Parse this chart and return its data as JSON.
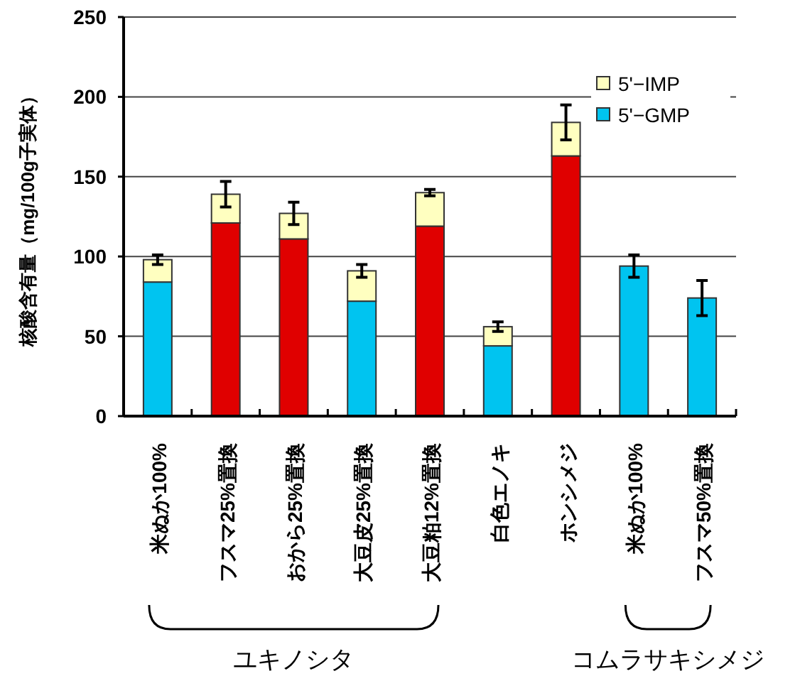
{
  "chart_data": {
    "type": "bar",
    "stacked": true,
    "ylabel": "核酸含有量（mg/100g子実体）",
    "categories": [
      "米ぬか100%",
      "フスマ25%置換",
      "おから25%置換",
      "大豆皮25%置換",
      "大豆粕12%置換",
      "白色エノキ",
      "ホンシメジ",
      "米ぬか100%",
      "フスマ50%置換"
    ],
    "series": [
      {
        "name": "5'−GMP",
        "color": "#00c4f0",
        "colors": [
          "#00c4f0",
          "#e00000",
          "#e00000",
          "#00c4f0",
          "#e00000",
          "#00c4f0",
          "#e00000",
          "#00c4f0",
          "#00c4f0"
        ],
        "values": [
          84,
          121,
          111,
          72,
          119,
          44,
          163,
          94,
          74
        ],
        "errors": [
          null,
          null,
          null,
          null,
          null,
          null,
          null,
          7,
          11
        ]
      },
      {
        "name": "5'−IMP",
        "color": "#ffffc0",
        "values": [
          14,
          18,
          16,
          19,
          21,
          12,
          21,
          null,
          null
        ],
        "errors": [
          3,
          8,
          7,
          4,
          2,
          3,
          11,
          null,
          null
        ]
      }
    ],
    "ylim": [
      0,
      250
    ],
    "yticks": [
      0,
      50,
      100,
      150,
      200,
      250
    ],
    "grid": "y",
    "legend": "top right",
    "annotations": [
      "ユキノシタ",
      "コムラサキシメジ"
    ]
  }
}
